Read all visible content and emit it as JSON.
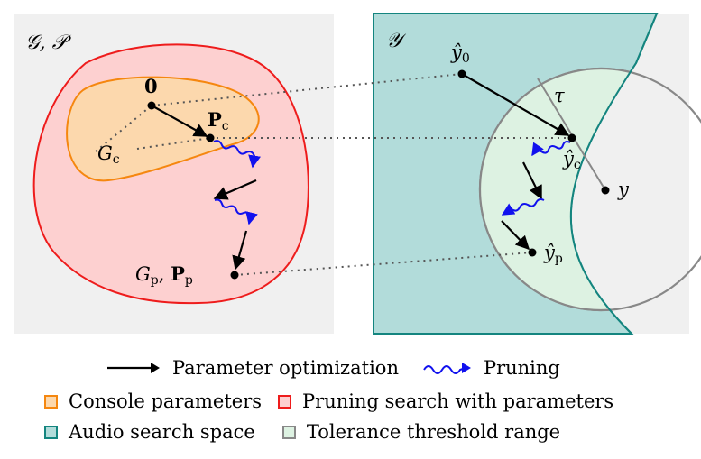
{
  "left_panel": {
    "title": "𝒢, 𝒫",
    "origin_label": "0",
    "pc_label": "P",
    "pc_sub": "c",
    "gc_label": "G",
    "gc_sub": "c",
    "gp_label": "G",
    "gp_sub": "p",
    "pp_label": "P",
    "pp_sub": "p"
  },
  "right_panel": {
    "title": "𝒴",
    "y0_label": "ŷ",
    "y0_sub": "0",
    "yc_label": "ŷ",
    "yc_sub": "c",
    "yp_label": "ŷ",
    "yp_sub": "p",
    "y_label": "y",
    "tau_label": "τ"
  },
  "legend": {
    "param_opt": "Parameter optimization",
    "pruning": "Pruning",
    "console_params": "Console parameters",
    "pruning_search": "Pruning search with parameters",
    "audio_space": "Audio search space",
    "tolerance": "Tolerance threshold range"
  },
  "colors": {
    "panel_bg": "#f0f0f0",
    "pruning_fill": "#fdd0d0",
    "pruning_stroke": "#ee1c1c",
    "console_fill": "#fcd8ad",
    "console_stroke": "#f5870f",
    "audio_fill": "#b2dcda",
    "audio_stroke": "#14857f",
    "tolerance_fill": "#ddf2e2",
    "tolerance_stroke": "#888888",
    "pruning_arrow": "#1111ee"
  }
}
